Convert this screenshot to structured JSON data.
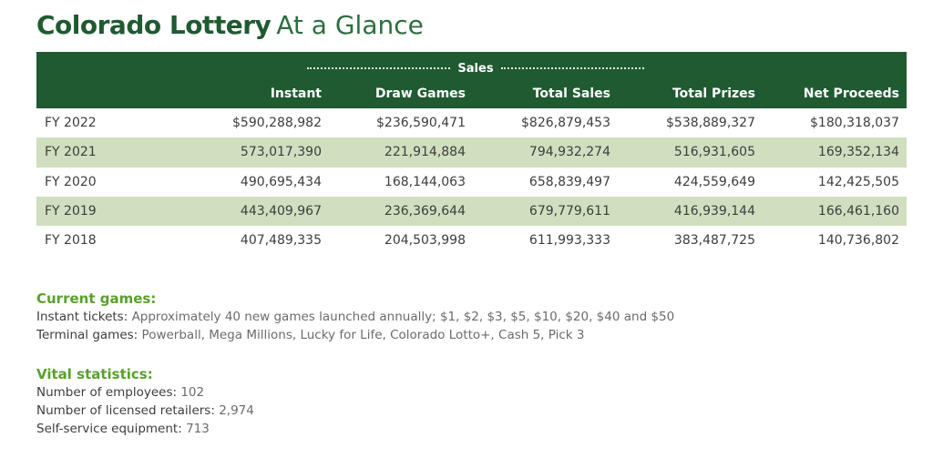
{
  "title": {
    "bold": "Colorado Lottery",
    "light": "At a Glance"
  },
  "table": {
    "group_label": "Sales",
    "columns": [
      "Instant",
      "Draw Games",
      "Total Sales",
      "Total Prizes",
      "Net Proceeds"
    ],
    "rows": [
      {
        "label": "FY 2022",
        "values": [
          "$590,288,982",
          "$236,590,471",
          "$826,879,453",
          "$538,889,327",
          "$180,318,037"
        ]
      },
      {
        "label": "FY 2021",
        "values": [
          "573,017,390",
          "221,914,884",
          "794,932,274",
          "516,931,605",
          "169,352,134"
        ]
      },
      {
        "label": "FY 2020",
        "values": [
          "490,695,434",
          "168,144,063",
          "658,839,497",
          "424,559,649",
          "142,425,505"
        ]
      },
      {
        "label": "FY 2019",
        "values": [
          "443,409,967",
          "236,369,644",
          "679,779,611",
          "416,939,144",
          "166,461,160"
        ]
      },
      {
        "label": "FY 2018",
        "values": [
          "407,489,335",
          "204,503,998",
          "611,993,333",
          "383,487,725",
          "140,736,802"
        ]
      }
    ]
  },
  "current_games": {
    "heading": "Current games:",
    "instant_label": "Instant tickets:",
    "instant_value": "Approximately 40 new games launched annually; $1, $2, $3, $5, $10, $20, $40 and $50",
    "terminal_label": "Terminal games:",
    "terminal_value": "Powerball, Mega Millions, Lucky for Life, Colorado Lotto+, Cash 5, Pick 3"
  },
  "vital_statistics": {
    "heading": "Vital statistics:",
    "employees_label": "Number of employees:",
    "employees_value": "102",
    "retailers_label": "Number of licensed retailers:",
    "retailers_value": "2,974",
    "equipment_label": "Self-service equipment:",
    "equipment_value": "713"
  },
  "colors": {
    "header_green": "#1f5a31",
    "row_shade": "#cfdfbf",
    "accent_green": "#5aa02c"
  }
}
